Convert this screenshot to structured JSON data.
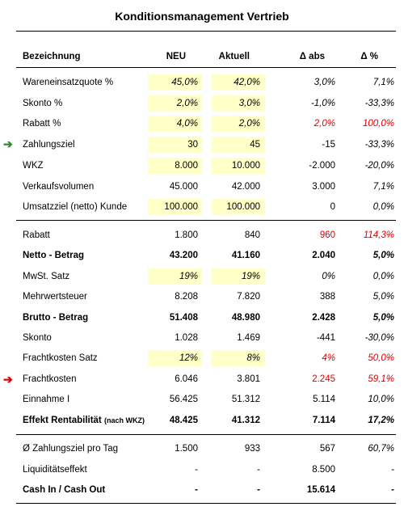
{
  "title": "Konditionsmanagement Vertrieb",
  "header": [
    "Bezeichnung",
    "NEU",
    "Aktuell",
    "Δ abs",
    "Δ %"
  ],
  "rows": [
    {
      "label": "Wareneinsatzquote %",
      "values": [
        "45,0%",
        "42,0%",
        "3,0%",
        "7,1%"
      ]
    },
    {
      "label": "Skonto %",
      "values": [
        "2,0%",
        "3,0%",
        "-1,0%",
        "-33,3%"
      ]
    },
    {
      "label": "Rabatt %",
      "values": [
        "4,0%",
        "2,0%",
        "2,0%",
        "100,0%"
      ]
    },
    {
      "label": "Zahlungsziel",
      "values": [
        "30",
        "45",
        "-15",
        "-33,3%"
      ]
    },
    {
      "label": "WKZ",
      "values": [
        "8.000",
        "10.000",
        "-2.000",
        "-20,0%"
      ]
    },
    {
      "label": "Verkaufsvolumen",
      "values": [
        "45.000",
        "42.000",
        "3.000",
        "7,1%"
      ]
    },
    {
      "label": "Umsatzziel (netto) Kunde",
      "values": [
        "100.000",
        "100.000",
        "0",
        "0,0%"
      ]
    },
    {
      "label": "Rabatt",
      "values": [
        "1.800",
        "840",
        "960",
        "114,3%"
      ]
    },
    {
      "label": "Netto - Betrag",
      "values": [
        "43.200",
        "41.160",
        "2.040",
        "5,0%"
      ]
    },
    {
      "label": "MwSt. Satz",
      "values": [
        "19%",
        "19%",
        "0%",
        "0,0%"
      ]
    },
    {
      "label": "Mehrwertsteuer",
      "values": [
        "8.208",
        "7.820",
        "388",
        "5,0%"
      ]
    },
    {
      "label": "Brutto - Betrag",
      "values": [
        "51.408",
        "48.980",
        "2.428",
        "5,0%"
      ]
    },
    {
      "label": "Skonto",
      "values": [
        "1.028",
        "1.469",
        "-441",
        "-30,0%"
      ]
    },
    {
      "label": "Frachtkosten Satz",
      "values": [
        "12%",
        "8%",
        "4%",
        "50,0%"
      ]
    },
    {
      "label": "Frachtkosten",
      "values": [
        "6.046",
        "3.801",
        "2.245",
        "59,1%"
      ]
    },
    {
      "label": "Einnahme I",
      "values": [
        "56.425",
        "51.312",
        "5.114",
        "10,0%"
      ]
    },
    {
      "label": "Effekt Rentabilität",
      "note": "(nach WKZ)",
      "values": [
        "48.425",
        "41.312",
        "7.114",
        "17,2%"
      ]
    },
    {
      "label": "Ø Zahlungsziel pro Tag",
      "values": [
        "1.500",
        "933",
        "567",
        "60,7%"
      ]
    },
    {
      "label": "Liquiditätseffekt",
      "values": [
        "-",
        "-",
        "8.500",
        "-"
      ]
    },
    {
      "label": "Cash In / Cash Out",
      "values": [
        "-",
        "-",
        "15.614",
        "-"
      ]
    }
  ]
}
